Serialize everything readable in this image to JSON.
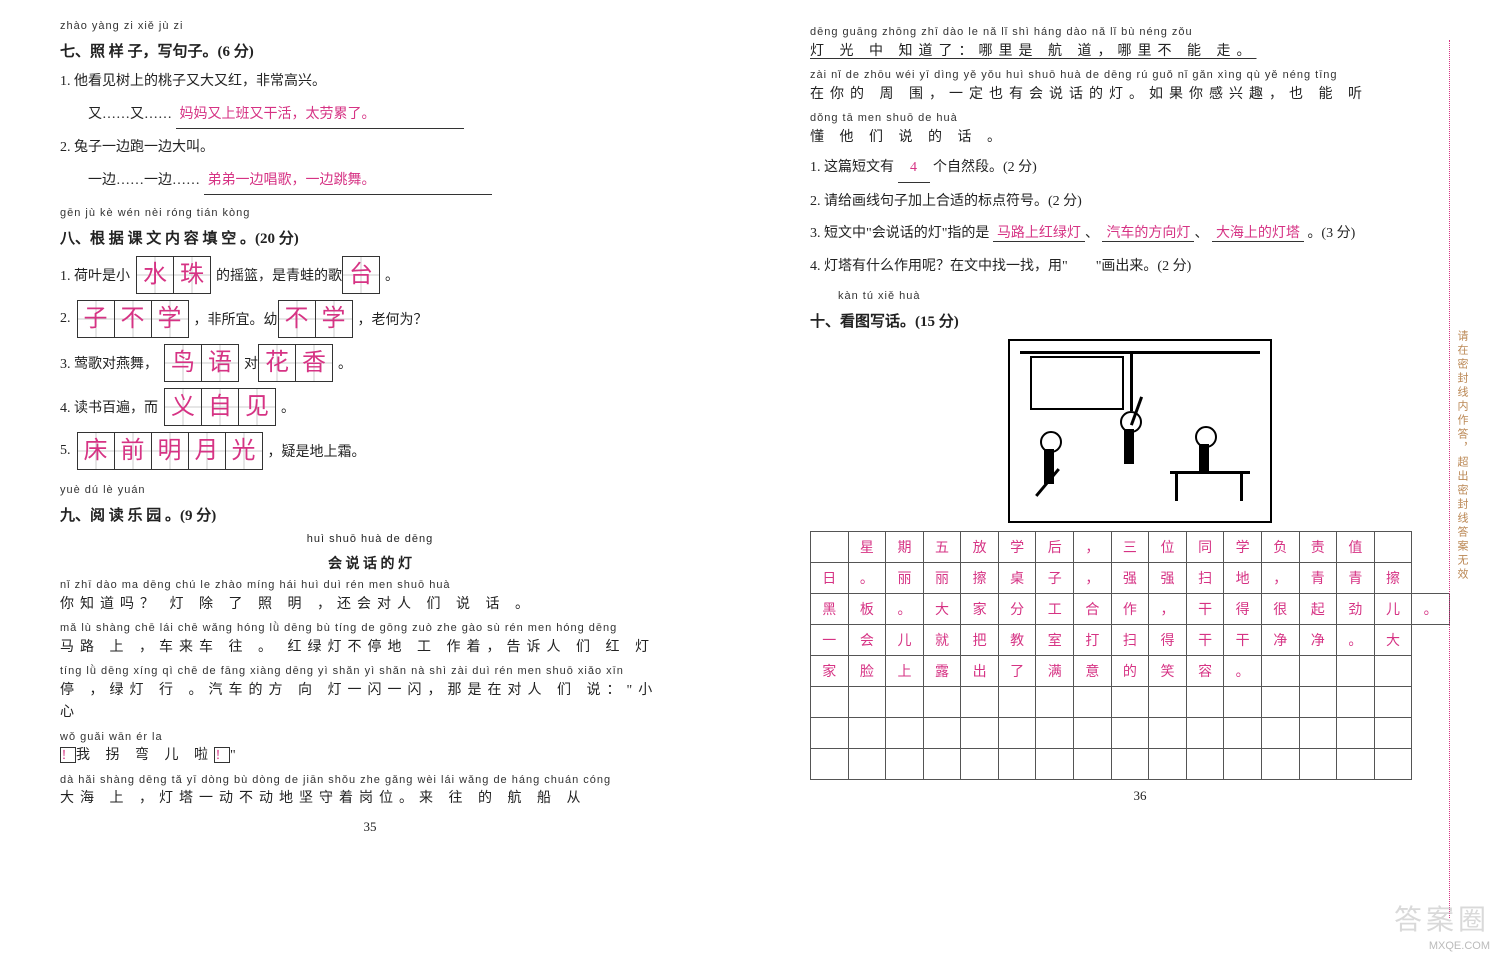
{
  "palette": {
    "ink": "#222222",
    "accent": "#d63384",
    "grid": "#555555",
    "guide": "#cccccc"
  },
  "left": {
    "sec7": {
      "pinyin": "zhào yàng zi   xiě jù zi",
      "title": "七、照 样 子，写句子。(6 分)",
      "q1_stem": "1. 他看见树上的桃子又大又红，非常高兴。",
      "q1_lead": "又……又……",
      "q1_ans": "妈妈又上班又干活，太劳累了。",
      "q2_stem": "2. 兔子一边跑一边大叫。",
      "q2_lead": "一边……一边……",
      "q2_ans": "弟弟一边唱歌，一边跳舞。"
    },
    "sec8": {
      "pinyin": "gēn jù  kè wén nèi róng tián kòng",
      "title": "八、根 据 课 文 内 容 填  空 。(20 分)",
      "rows": [
        {
          "pre": "1. 荷叶是小",
          "chars": [
            "水",
            "珠"
          ],
          "mid": "的摇篮，是青蛙的歌",
          "tailchars": [
            "台"
          ],
          "tail": "。"
        },
        {
          "pre": "2. ",
          "chars": [
            "子",
            "不",
            "学"
          ],
          "mid": "，非所宜。幼",
          "tailchars": [
            "不",
            "学"
          ],
          "tail": "，老何为？"
        },
        {
          "pre": "3. 莺歌对燕舞，",
          "chars": [
            "鸟",
            "语"
          ],
          "mid": "对",
          "tailchars": [
            "花",
            "香"
          ],
          "tail": "。"
        },
        {
          "pre": "4. 读书百遍，而",
          "chars": [
            "义",
            "自",
            "见"
          ],
          "mid": "",
          "tailchars": [],
          "tail": "。"
        },
        {
          "pre": "5. ",
          "chars": [
            "床",
            "前",
            "明",
            "月",
            "光"
          ],
          "mid": "",
          "tailchars": [],
          "tail": "，疑是地上霜。"
        }
      ]
    },
    "sec9": {
      "pinyin": "yuè dú  lè yuán",
      "title": "九、阅 读 乐 园 。(9 分)",
      "art_pinyin": "huì shuō huà de dēng",
      "art_title": "会 说 话 的 灯",
      "lines": [
        {
          "py": "nǐ zhī dào ma     dēng chú le zhào míng   hái huì duì rén men shuō huà",
          "han": "你知道吗？ 灯 除 了 照  明 ，还会对人 们 说 话 。"
        },
        {
          "py": "mǎ lù shàng   chē lái chē wǎng   hóng lǜ dēng bù tíng de gōng zuò zhe   gào sù rén men hóng dēng",
          "han": "马路 上 ，车来车 往 。 红绿灯不停地 工 作着，告诉人 们 红 灯"
        },
        {
          "py": "tíng   lǜ dēng xíng    qì chē de fāng xiàng dēng yì shǎn yì shǎn   nà shì zài duì rén men shuō   xiǎo xīn",
          "han": "停 ，绿灯 行 。汽车的方 向  灯一闪一闪，那是在对人 们 说：\"小 心"
        },
        {
          "py": "   wǒ guǎi wān ér la",
          "han": "",
          "special": "turn"
        },
        {
          "py": "dà hǎi shàng   dēng tǎ yī dòng bù dòng de jiān shǒu zhe gǎng wèi     lái wǎng de háng chuán cóng",
          "han": "大海 上 ，灯塔一动不动地坚守着岗位。来 往 的 航  船  从"
        }
      ]
    },
    "pagenum": "35"
  },
  "right": {
    "cont": [
      {
        "py": "dēng guāng zhōng zhī dào le    nǎ lǐ shì háng dào   nǎ lǐ bù néng zǒu",
        "han": "灯 光  中 知道了：哪里是 航 道，哪里不 能 走。"
      },
      {
        "py": "zài nǐ de zhōu wéi  yī dìng yě yǒu huì shuō huà de dēng     rú guǒ nǐ gǎn xìng qù   yě néng tīng",
        "han": "在你的 周 围，一定也有会说话的灯。如果你感兴趣，也 能  听"
      },
      {
        "py": "dǒng tā men shuō de huà",
        "han": "懂 他 们 说 的 话 。"
      }
    ],
    "q1_pre": "1. 这篇短文有",
    "q1_ans": "4",
    "q1_post": "个自然段。(2 分)",
    "q2": "2. 请给画线句子加上合适的标点符号。(2 分)",
    "q3_pre": "3. 短文中\"会说话的灯\"指的是",
    "q3_a": "马路上红绿灯",
    "q3_b": "汽车的方向灯",
    "q3_c": "大海上的灯塔",
    "q3_post": "。(3 分)",
    "q4": "4. 灯塔有什么作用呢？在文中找一找，用\"　　\"画出来。(2 分)",
    "sec10": {
      "pinyin": "kàn tú xiě huà",
      "title": "十、看图写话。(15 分)"
    },
    "grid": [
      [
        "",
        "星",
        "期",
        "五",
        "放",
        "学",
        "后",
        "，",
        "三",
        "位",
        "同",
        "学",
        "负",
        "责",
        "值",
        ""
      ],
      [
        "日",
        "。",
        "丽",
        "丽",
        "擦",
        "桌",
        "子",
        "，",
        "强",
        "强",
        "扫",
        "地",
        "，",
        "青",
        "青",
        "擦"
      ],
      [
        "黑",
        "板",
        "。",
        "大",
        "家",
        "分",
        "工",
        "合",
        "作",
        "，",
        "干",
        "得",
        "很",
        "起",
        "劲",
        "儿",
        "。"
      ],
      [
        "一",
        "会",
        "儿",
        "就",
        "把",
        "教",
        "室",
        "打",
        "扫",
        "得",
        "干",
        "干",
        "净",
        "净",
        "。",
        "大"
      ],
      [
        "家",
        "脸",
        "上",
        "露",
        "出",
        "了",
        "满",
        "意",
        "的",
        "笑",
        "容",
        "。",
        "",
        "",
        "",
        ""
      ],
      [
        "",
        "",
        "",
        "",
        "",
        "",
        "",
        "",
        "",
        "",
        "",
        "",
        "",
        "",
        "",
        ""
      ],
      [
        "",
        "",
        "",
        "",
        "",
        "",
        "",
        "",
        "",
        "",
        "",
        "",
        "",
        "",
        "",
        ""
      ],
      [
        "",
        "",
        "",
        "",
        "",
        "",
        "",
        "",
        "",
        "",
        "",
        "",
        "",
        "",
        "",
        ""
      ]
    ],
    "pagenum": "36",
    "sidetext": "请在密封线内作答，超出密封线答案无效"
  },
  "watermark": {
    "brand": "答案圈",
    "url": "MXQE.COM"
  }
}
